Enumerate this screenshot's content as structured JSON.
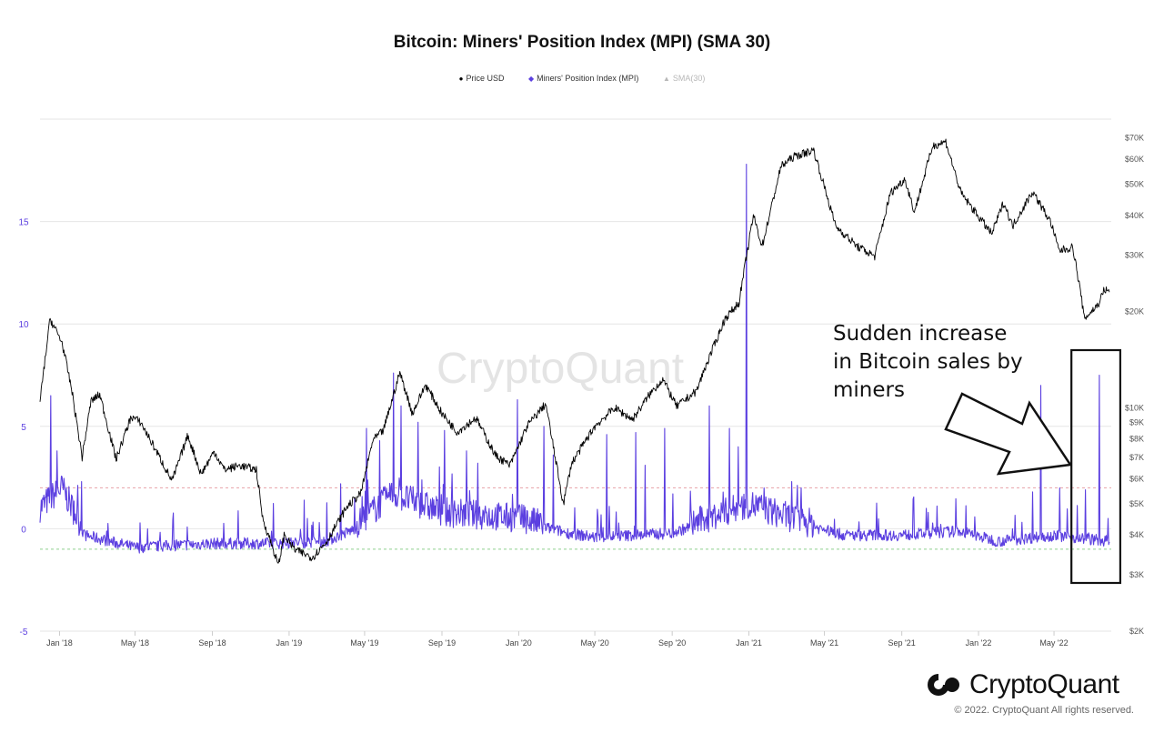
{
  "chart_data": {
    "type": "line",
    "title": "Bitcoin: Miners' Position Index (MPI) (SMA 30)",
    "legend": [
      {
        "label": "Price USD",
        "marker": "●",
        "color": "#000000"
      },
      {
        "label": "Miners' Position Index (MPI)",
        "marker": "◆",
        "color": "#5b3fe0"
      },
      {
        "label": "SMA(30)",
        "marker": "▲",
        "color": "#bbbbbb"
      }
    ],
    "legend_position": "top-center",
    "x_ticks": [
      "Jan '18",
      "May '18",
      "Sep '18",
      "Jan '19",
      "May '19",
      "Sep '19",
      "Jan '20",
      "May '20",
      "Sep '20",
      "Jan '21",
      "May '21",
      "Sep '21",
      "Jan '22",
      "May '22"
    ],
    "y_left_ticks": [
      "15",
      "10",
      "5",
      "0",
      "-5"
    ],
    "y_left_range": [
      -5,
      20
    ],
    "y_right_ticks": [
      "$70K",
      "$60K",
      "$50K",
      "$40K",
      "$30K",
      "$20K",
      "$10K",
      "$9K",
      "$8K",
      "$7K",
      "$6K",
      "$5K",
      "$4K",
      "$3K",
      "$2K"
    ],
    "y_right_scale": "log",
    "y_right_range": [
      2000,
      80000
    ],
    "reference_lines": [
      {
        "value": 2,
        "color": "#e8a0a8",
        "style": "dashed"
      },
      {
        "value": -1,
        "color": "#8fd08f",
        "style": "dashed"
      }
    ],
    "series": [
      {
        "name": "Price USD",
        "axis": "right",
        "color": "#000000",
        "points": [
          [
            "2017-12-01",
            10500
          ],
          [
            "2017-12-17",
            19000
          ],
          [
            "2018-01-05",
            16000
          ],
          [
            "2018-01-20",
            11500
          ],
          [
            "2018-02-06",
            7000
          ],
          [
            "2018-02-20",
            10500
          ],
          [
            "2018-03-06",
            11000
          ],
          [
            "2018-04-01",
            6900
          ],
          [
            "2018-04-25",
            9400
          ],
          [
            "2018-05-10",
            9000
          ],
          [
            "2018-06-01",
            7500
          ],
          [
            "2018-06-29",
            5900
          ],
          [
            "2018-07-24",
            8200
          ],
          [
            "2018-08-14",
            6200
          ],
          [
            "2018-09-04",
            7300
          ],
          [
            "2018-09-20",
            6400
          ],
          [
            "2018-10-15",
            6600
          ],
          [
            "2018-11-10",
            6400
          ],
          [
            "2018-11-20",
            4500
          ],
          [
            "2018-12-05",
            3700
          ],
          [
            "2018-12-15",
            3200
          ],
          [
            "2018-12-24",
            4000
          ],
          [
            "2019-01-10",
            3600
          ],
          [
            "2019-02-07",
            3400
          ],
          [
            "2019-03-01",
            3800
          ],
          [
            "2019-04-03",
            4900
          ],
          [
            "2019-04-25",
            5400
          ],
          [
            "2019-05-14",
            7900
          ],
          [
            "2019-05-31",
            8500
          ],
          [
            "2019-06-26",
            12900
          ],
          [
            "2019-07-16",
            9600
          ],
          [
            "2019-08-06",
            11800
          ],
          [
            "2019-09-01",
            9600
          ],
          [
            "2019-09-25",
            8400
          ],
          [
            "2019-10-25",
            9300
          ],
          [
            "2019-11-25",
            7100
          ],
          [
            "2019-12-18",
            6600
          ],
          [
            "2020-01-15",
            8800
          ],
          [
            "2020-02-13",
            10300
          ],
          [
            "2020-03-12",
            5000
          ],
          [
            "2020-03-25",
            6700
          ],
          [
            "2020-04-30",
            8700
          ],
          [
            "2020-06-01",
            10000
          ],
          [
            "2020-06-30",
            9200
          ],
          [
            "2020-07-27",
            11000
          ],
          [
            "2020-08-17",
            12300
          ],
          [
            "2020-09-08",
            10100
          ],
          [
            "2020-10-10",
            11300
          ],
          [
            "2020-10-21",
            13000
          ],
          [
            "2020-11-24",
            19000
          ],
          [
            "2020-12-16",
            21300
          ],
          [
            "2021-01-08",
            40000
          ],
          [
            "2021-01-22",
            32000
          ],
          [
            "2021-02-21",
            57000
          ],
          [
            "2021-03-13",
            61000
          ],
          [
            "2021-04-14",
            64000
          ],
          [
            "2021-05-19",
            37000
          ],
          [
            "2021-06-22",
            32000
          ],
          [
            "2021-07-20",
            29800
          ],
          [
            "2021-08-14",
            47000
          ],
          [
            "2021-09-06",
            52000
          ],
          [
            "2021-09-21",
            41000
          ],
          [
            "2021-10-20",
            66000
          ],
          [
            "2021-11-10",
            68000
          ],
          [
            "2021-12-04",
            47000
          ],
          [
            "2022-01-22",
            35000
          ],
          [
            "2022-02-10",
            44000
          ],
          [
            "2022-02-24",
            37000
          ],
          [
            "2022-03-28",
            47500
          ],
          [
            "2022-04-26",
            38000
          ],
          [
            "2022-05-09",
            31000
          ],
          [
            "2022-05-31",
            31800
          ],
          [
            "2022-06-13",
            22500
          ],
          [
            "2022-06-18",
            19000
          ],
          [
            "2022-07-10",
            21000
          ],
          [
            "2022-07-20",
            23500
          ],
          [
            "2022-07-28",
            23000
          ]
        ]
      },
      {
        "name": "Miners' Position Index (MPI)",
        "axis": "left",
        "color": "#5b3fe0",
        "baseline": [
          [
            "2017-12-01",
            0.8
          ],
          [
            "2018-01-05",
            1.8
          ],
          [
            "2018-02-10",
            -0.4
          ],
          [
            "2018-05-01",
            -1.0
          ],
          [
            "2018-09-01",
            -0.8
          ],
          [
            "2018-12-15",
            -0.8
          ],
          [
            "2019-03-01",
            -0.7
          ],
          [
            "2019-04-15",
            -0.1
          ],
          [
            "2019-06-15",
            1.5
          ],
          [
            "2019-09-01",
            0.6
          ],
          [
            "2020-01-01",
            0.3
          ],
          [
            "2020-03-20",
            -0.3
          ],
          [
            "2020-05-01",
            -0.5
          ],
          [
            "2020-09-01",
            -0.3
          ],
          [
            "2021-01-01",
            1.0
          ],
          [
            "2021-03-01",
            0.4
          ],
          [
            "2021-06-01",
            -0.4
          ],
          [
            "2021-09-01",
            -0.4
          ],
          [
            "2021-12-01",
            -0.2
          ],
          [
            "2022-02-01",
            -0.7
          ],
          [
            "2022-05-01",
            -0.4
          ],
          [
            "2022-07-28",
            -0.7
          ]
        ],
        "spikes": [
          [
            "2017-12-18",
            6.5
          ],
          [
            "2017-12-28",
            3.8
          ],
          [
            "2018-02-05",
            2.3
          ],
          [
            "2019-01-25",
            1.4
          ],
          [
            "2019-03-24",
            2.2
          ],
          [
            "2019-05-04",
            4.9
          ],
          [
            "2019-05-25",
            4.3
          ],
          [
            "2019-06-16",
            7.6
          ],
          [
            "2019-06-28",
            6.0
          ],
          [
            "2019-07-25",
            5.2
          ],
          [
            "2019-09-05",
            4.8
          ],
          [
            "2019-10-10",
            3.8
          ],
          [
            "2019-10-28",
            3.2
          ],
          [
            "2019-12-30",
            6.3
          ],
          [
            "2020-02-10",
            5.0
          ],
          [
            "2020-02-25",
            3.6
          ],
          [
            "2020-05-20",
            4.6
          ],
          [
            "2020-07-05",
            4.7
          ],
          [
            "2020-07-20",
            3.1
          ],
          [
            "2020-08-20",
            4.9
          ],
          [
            "2020-10-30",
            6.0
          ],
          [
            "2020-12-01",
            4.9
          ],
          [
            "2020-12-15",
            4.0
          ],
          [
            "2020-12-28",
            17.8
          ],
          [
            "2021-01-25",
            2.0
          ],
          [
            "2021-03-10",
            2.3
          ],
          [
            "2021-03-25",
            2.0
          ],
          [
            "2021-10-10",
            1.0
          ],
          [
            "2022-03-28",
            1.8
          ],
          [
            "2022-04-10",
            7.0
          ],
          [
            "2022-05-10",
            2.0
          ],
          [
            "2022-06-20",
            1.9
          ],
          [
            "2022-07-12",
            7.5
          ],
          [
            "2022-07-26",
            0.5
          ]
        ]
      }
    ],
    "annotations": [
      {
        "text": "Sudden increase\nin Bitcoin sales by\nminers",
        "arrow": "right-down",
        "highlight_box": [
          "2022-06-15",
          "2022-07-28"
        ]
      }
    ],
    "grid": {
      "horizontal": true,
      "vertical": false
    }
  },
  "watermark": "CryptoQuant",
  "brand": {
    "name": "CryptoQuant",
    "copyright": "© 2022. CryptoQuant All rights reserved."
  }
}
